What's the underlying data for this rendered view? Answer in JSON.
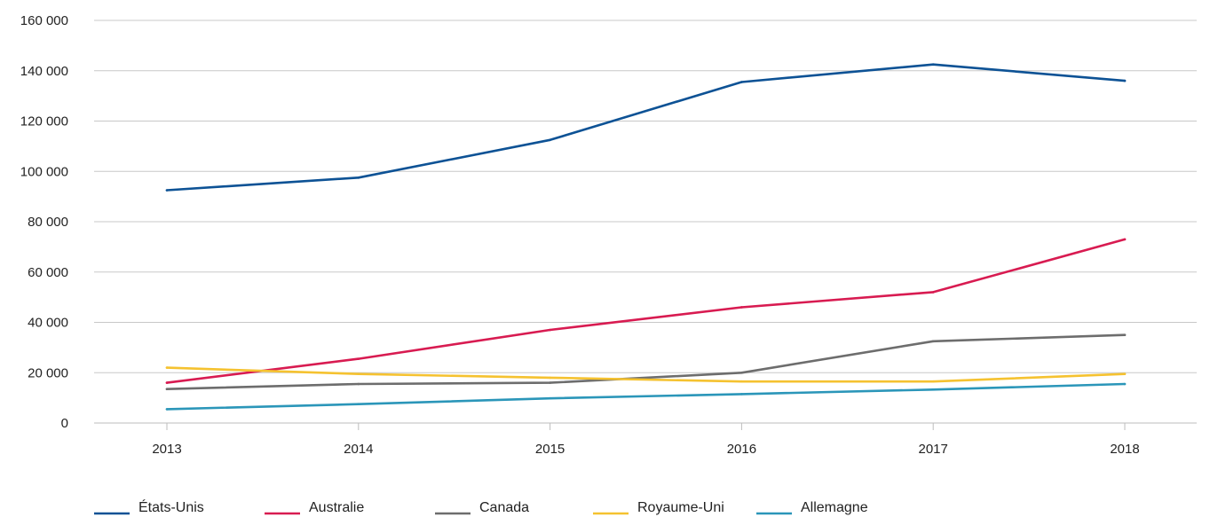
{
  "chart_data": {
    "type": "line",
    "title": "",
    "xlabel": "",
    "ylabel": "",
    "categories": [
      "2013",
      "2014",
      "2015",
      "2016",
      "2017",
      "2018"
    ],
    "ylim": [
      0,
      160000
    ],
    "y_ticks": [
      0,
      20000,
      40000,
      60000,
      80000,
      100000,
      120000,
      140000,
      160000
    ],
    "y_tick_labels": [
      "0",
      "20 000",
      "40 000",
      "60 000",
      "80 000",
      "100 000",
      "120 000",
      "140 000",
      "160 000"
    ],
    "grid": "horizontal",
    "legend_position": "bottom-left",
    "series": [
      {
        "name": "États-Unis",
        "color": "#0d5295",
        "values": [
          92500,
          97500,
          112500,
          135500,
          142500,
          136000
        ]
      },
      {
        "name": "Australie",
        "color": "#d81b51",
        "values": [
          16000,
          25500,
          37000,
          46000,
          52000,
          73000
        ]
      },
      {
        "name": "Canada",
        "color": "#6d6d6d",
        "values": [
          13500,
          15500,
          16000,
          20000,
          32500,
          35000
        ]
      },
      {
        "name": "Royaume-Uni",
        "color": "#f5c230",
        "values": [
          22000,
          19500,
          18000,
          16500,
          16500,
          19500
        ]
      },
      {
        "name": "Allemagne",
        "color": "#2b96b9",
        "values": [
          5500,
          7500,
          9800,
          11500,
          13300,
          15500
        ]
      }
    ]
  }
}
